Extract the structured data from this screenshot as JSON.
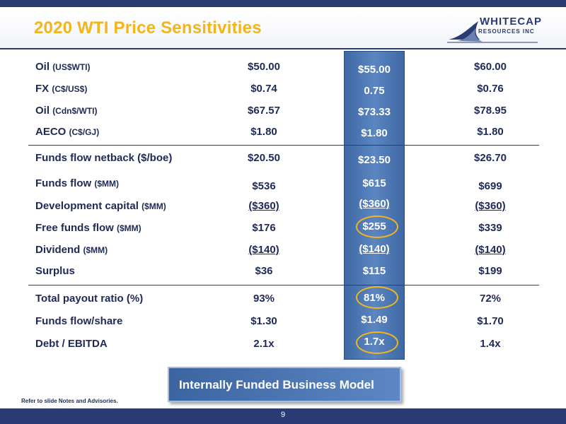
{
  "header": {
    "title": "2020 WTI Price Sensitivities"
  },
  "logo": {
    "name": "WHITECAP",
    "sub": "RESOURCES INC"
  },
  "rows": [
    {
      "label": "Oil",
      "unit": "(US$WTI)",
      "c1": "$50.00",
      "c2": "$55.00",
      "c3": "$60.00"
    },
    {
      "label": "FX",
      "unit": "(C$/US$)",
      "c1": "$0.74",
      "c2": "0.75",
      "c3": "$0.76"
    },
    {
      "label": "Oil",
      "unit": "(Cdn$/WTI)",
      "c1": "$67.57",
      "c2": "$73.33",
      "c3": "$78.95"
    },
    {
      "label": "AECO",
      "unit": "(C$/GJ)",
      "c1": "$1.80",
      "c2": "$1.80",
      "c3": "$1.80"
    },
    {
      "label": "Funds flow netback ($/boe)",
      "unit": "",
      "c1": "$20.50",
      "c2": "$23.50",
      "c3": "$26.70"
    },
    {
      "label": "Funds flow",
      "unit": "($MM)",
      "c1": "$536",
      "c2": "$615",
      "c3": "$699"
    },
    {
      "label": "Development capital",
      "unit": "($MM)",
      "c1": "($360)",
      "c2": "($360)",
      "c3": "($360)"
    },
    {
      "label": "Free funds flow",
      "unit": "($MM)",
      "c1": "$176",
      "c2": "$255",
      "c3": "$339"
    },
    {
      "label": "Dividend",
      "unit": "($MM)",
      "c1": "($140)",
      "c2": "($140)",
      "c3": "($140)"
    },
    {
      "label": "Surplus",
      "unit": "",
      "c1": "$36",
      "c2": "$115",
      "c3": "$199"
    },
    {
      "label": "Total payout ratio (%)",
      "unit": "",
      "c1": "93%",
      "c2": "81%",
      "c3": "72%"
    },
    {
      "label": "Funds flow/share",
      "unit": "",
      "c1": "$1.30",
      "c2": "$1.49",
      "c3": "$1.70"
    },
    {
      "label": "Debt / EBITDA",
      "unit": "",
      "c1": "2.1x",
      "c2": "1.7x",
      "c3": "1.4x"
    }
  ],
  "banner": {
    "text": "Internally Funded Business Model"
  },
  "footnote": "Refer to slide Notes and Advisories.",
  "page_number": "9",
  "colors": {
    "navy": "#2a3a72",
    "gold": "#f2b51e",
    "highlight": "#4a74b0"
  }
}
